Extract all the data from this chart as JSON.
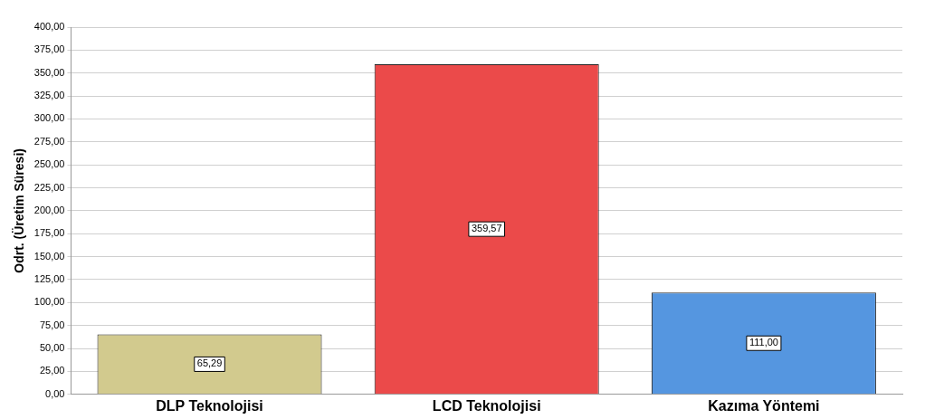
{
  "chart_data": {
    "type": "bar",
    "ylabel": "Odrt. (Üretim Süresi)",
    "categories": [
      "DLP Teknolojisi",
      "LCD Teknolojisi",
      "Kazıma Yöntemi"
    ],
    "values": [
      65.29,
      359.57,
      111.0
    ],
    "colors": [
      "#d2ca8e",
      "#eb4a4a",
      "#5596e0"
    ],
    "value_labels": [
      "65,29",
      "359,57",
      "111,00"
    ],
    "ylim": [
      0,
      400
    ],
    "yticks": [
      {
        "value": 0,
        "label": "0,00"
      },
      {
        "value": 25,
        "label": "25,00"
      },
      {
        "value": 50,
        "label": "50,00"
      },
      {
        "value": 75,
        "label": "75,00"
      },
      {
        "value": 100,
        "label": "100,00"
      },
      {
        "value": 125,
        "label": "125,00"
      },
      {
        "value": 150,
        "label": "150,00"
      },
      {
        "value": 175,
        "label": "175,00"
      },
      {
        "value": 200,
        "label": "200,00"
      },
      {
        "value": 225,
        "label": "225,00"
      },
      {
        "value": 250,
        "label": "250,00"
      },
      {
        "value": 275,
        "label": "275,00"
      },
      {
        "value": 300,
        "label": "300,00"
      },
      {
        "value": 325,
        "label": "325,00"
      },
      {
        "value": 350,
        "label": "350,00"
      },
      {
        "value": 375,
        "label": "375,00"
      },
      {
        "value": 400,
        "label": "400,00"
      }
    ],
    "grid": "y"
  }
}
